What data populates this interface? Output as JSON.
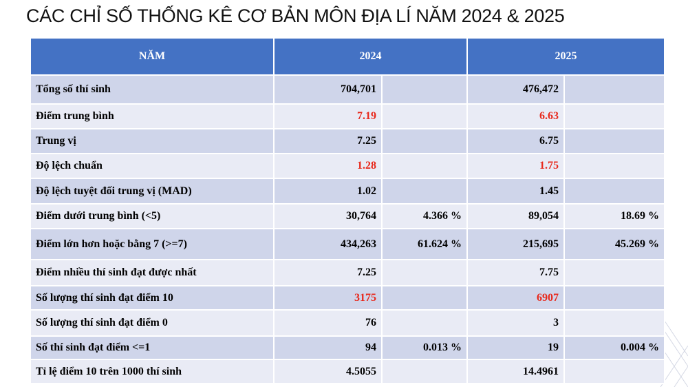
{
  "title": "CÁC CHỈ SỐ THỐNG KÊ CƠ BẢN MÔN ĐỊA LÍ NĂM 2024 & 2025",
  "header": {
    "col0": "NĂM",
    "col1": "2024",
    "col2": "2025"
  },
  "highlight_color": "#e8281b",
  "header_color": "#4472c4",
  "rows": [
    {
      "label": "Tổng số thí sinh",
      "v2024": "704,701",
      "p2024": "",
      "v2025": "476,472",
      "p2025": "",
      "highlight": false
    },
    {
      "label": "Điểm trung bình",
      "v2024": "7.19",
      "p2024": "",
      "v2025": "6.63",
      "p2025": "",
      "highlight": true
    },
    {
      "label": "Trung vị",
      "v2024": "7.25",
      "p2024": "",
      "v2025": "6.75",
      "p2025": "",
      "highlight": false
    },
    {
      "label": "Độ lệch chuẩn",
      "v2024": "1.28",
      "p2024": "",
      "v2025": "1.75",
      "p2025": "",
      "highlight": true
    },
    {
      "label": "Độ lệch tuyệt đối trung vị (MAD)",
      "v2024": "1.02",
      "p2024": "",
      "v2025": "1.45",
      "p2025": "",
      "highlight": false
    },
    {
      "label": "Điểm dưới trung bình (<5)",
      "v2024": "30,764",
      "p2024": "4.366 %",
      "v2025": "89,054",
      "p2025": "18.69 %",
      "highlight": false
    },
    {
      "label": "Điểm lớn hơn hoặc bằng 7 (>=7)",
      "v2024": "434,263",
      "p2024": "61.624 %",
      "v2025": "215,695",
      "p2025": "45.269 %",
      "highlight": false
    },
    {
      "label": "Điểm nhiều thí sinh đạt được nhất",
      "v2024": "7.25",
      "p2024": "",
      "v2025": "7.75",
      "p2025": "",
      "highlight": false
    },
    {
      "label": "Số lượng thí sinh đạt điểm 10",
      "v2024": "3175",
      "p2024": "",
      "v2025": "6907",
      "p2025": "",
      "highlight": true
    },
    {
      "label": "Số lượng thí sinh đạt điểm 0",
      "v2024": "76",
      "p2024": "",
      "v2025": "3",
      "p2025": "",
      "highlight": false
    },
    {
      "label": "Số thí sinh đạt điểm <=1",
      "v2024": "94",
      "p2024": "0.013 %",
      "v2025": "19",
      "p2025": "0.004 %",
      "highlight": false
    },
    {
      "label": "Tỉ lệ điểm 10 trên 1000 thí sinh",
      "v2024": "4.5055",
      "p2024": "",
      "v2025": "14.4961",
      "p2025": "",
      "highlight": false
    }
  ]
}
